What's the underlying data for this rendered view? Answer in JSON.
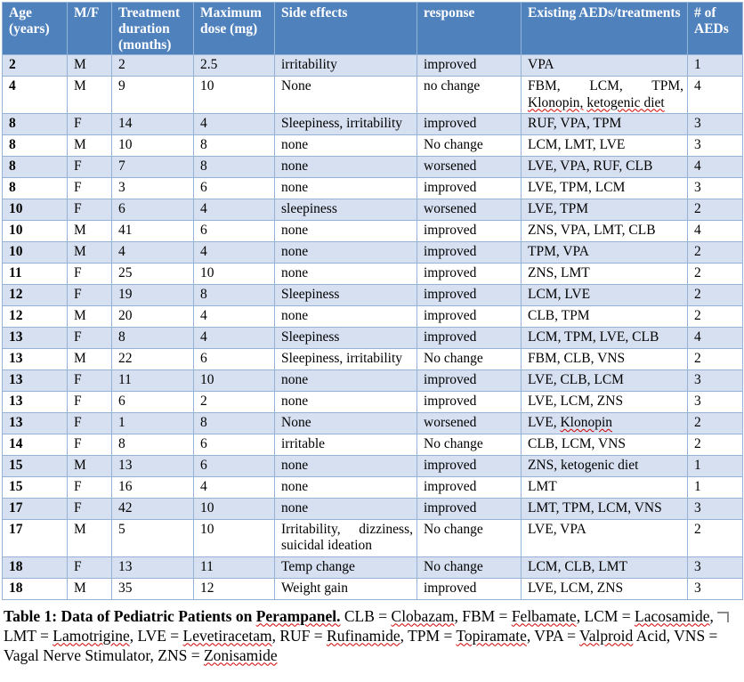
{
  "colors": {
    "header_bg": "#4F81BD",
    "header_text": "#FFFFFF",
    "band_bg": "#D6E0F0",
    "border_color": "#95B3D7",
    "spell_color": "#D00000"
  },
  "table": {
    "columns": [
      "Age (years)",
      "M/F",
      "Treatment duration (months)",
      "Maximum dose (mg)",
      "Side effects",
      "response",
      "Existing AEDs/treatments",
      "# of AEDs"
    ],
    "rows": [
      [
        "2",
        "M",
        "2",
        "2.5",
        "irritability",
        "improved",
        "VPA",
        "1"
      ],
      [
        "4",
        "M",
        "9",
        "10",
        "None",
        "no change",
        {
          "segments": [
            {
              "text": "FBM, LCM, TPM, "
            },
            {
              "text": "Klonopin,",
              "misspelled": true
            },
            {
              "text": " "
            },
            {
              "text": "ketogenic diet",
              "misspelled": true
            }
          ]
        },
        "4"
      ],
      [
        "8",
        "F",
        "14",
        "4",
        "Sleepiness, irritability",
        "improved",
        "RUF, VPA, TPM",
        "3"
      ],
      [
        "8",
        "M",
        "10",
        "8",
        "none",
        "No change",
        "LCM, LMT, LVE",
        "3"
      ],
      [
        "8",
        "F",
        "7",
        "8",
        "none",
        "worsened",
        "LVE, VPA, RUF, CLB",
        "4"
      ],
      [
        "8",
        "F",
        "3",
        "6",
        "none",
        "improved",
        "LVE, TPM, LCM",
        "3"
      ],
      [
        "10",
        "F",
        "6",
        "4",
        "sleepiness",
        "worsened",
        "LVE, TPM",
        "2"
      ],
      [
        "10",
        "M",
        "41",
        "6",
        "none",
        "improved",
        "ZNS, VPA, LMT, CLB",
        "4"
      ],
      [
        "10",
        "M",
        "4",
        "4",
        "none",
        "improved",
        "TPM, VPA",
        "2"
      ],
      [
        "11",
        "F",
        "25",
        "10",
        "none",
        "improved",
        "ZNS, LMT",
        "2"
      ],
      [
        "12",
        "F",
        "19",
        "8",
        "Sleepiness",
        "improved",
        "LCM, LVE",
        "2"
      ],
      [
        "12",
        "M",
        "20",
        "4",
        "none",
        "improved",
        "CLB, TPM",
        "2"
      ],
      [
        "13",
        "F",
        "8",
        "4",
        "Sleepiness",
        "improved",
        "LCM, TPM, LVE, CLB",
        "4"
      ],
      [
        "13",
        "M",
        "22",
        "6",
        "Sleepiness, irritability",
        "No change",
        "FBM, CLB, VNS",
        "2"
      ],
      [
        "13",
        "F",
        "11",
        "10",
        "none",
        "improved",
        "LVE, CLB, LCM",
        "3"
      ],
      [
        "13",
        "F",
        "6",
        "2",
        "none",
        "improved",
        "LVE, LCM, ZNS",
        "3"
      ],
      [
        "13",
        "F",
        "1",
        "8",
        "None",
        "worsened",
        {
          "segments": [
            {
              "text": "LVE, "
            },
            {
              "text": "Klonopin",
              "misspelled": true
            }
          ]
        },
        "2"
      ],
      [
        "14",
        "F",
        "8",
        "6",
        "irritable",
        "No change",
        "CLB, LCM, VNS",
        "2"
      ],
      [
        "15",
        "M",
        "13",
        "6",
        "none",
        "improved",
        "ZNS, ketogenic diet",
        "1"
      ],
      [
        "15",
        "F",
        "16",
        "4",
        "none",
        "improved",
        "LMT",
        "1"
      ],
      [
        "17",
        "F",
        "42",
        "10",
        "none",
        "improved",
        "LMT, TPM, LCM, VNS",
        "3"
      ],
      [
        "17",
        "M",
        "5",
        "10",
        "Irritability, dizziness, suicidal ideation",
        "No change",
        "LVE, VPA",
        "2"
      ],
      [
        "18",
        "F",
        "13",
        "11",
        "Temp change",
        "No change",
        "LCM, CLB, LMT",
        "3"
      ],
      [
        "18",
        "M",
        "35",
        "12",
        "Weight gain",
        "improved",
        "LVE, LCM, ZNS",
        "3"
      ]
    ]
  },
  "caption": {
    "segments": [
      {
        "text": "Table 1: Data of Pediatric Patients on ",
        "bold": true
      },
      {
        "text": "Perampanel.",
        "bold": true,
        "misspelled": true
      },
      {
        "text": " CLB = "
      },
      {
        "text": "Clobazam",
        "misspelled": true
      },
      {
        "text": ", FBM = "
      },
      {
        "text": "Felbamate",
        "misspelled": true
      },
      {
        "text": ", LCM = "
      },
      {
        "text": "Lacosamide",
        "misspelled": true
      },
      {
        "text": ", LMT = "
      },
      {
        "text": "Lamotrigine",
        "misspelled": true
      },
      {
        "text": ", LVE = "
      },
      {
        "text": "Levetiracetam",
        "misspelled": true
      },
      {
        "text": ", RUF = "
      },
      {
        "text": "Rufinamide",
        "misspelled": true
      },
      {
        "text": ", TPM = "
      },
      {
        "text": "Topiramate",
        "misspelled": true
      },
      {
        "text": ", VPA = "
      },
      {
        "text": "Valproid",
        "misspelled": true
      },
      {
        "text": " Acid, VNS = Vagal Nerve Stimulator, ZNS = "
      },
      {
        "text": "Zonisamide",
        "misspelled": true
      }
    ]
  }
}
